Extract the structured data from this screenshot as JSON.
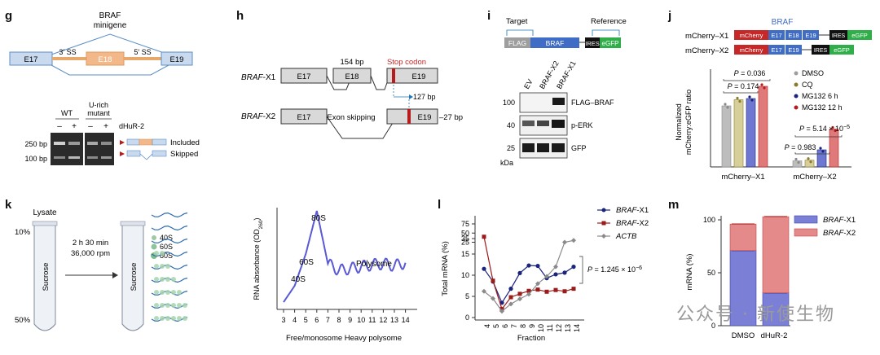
{
  "panels": {
    "g": {
      "letter": "g",
      "title": "BRAF\nminigene",
      "exons": [
        "E17",
        "E18",
        "E19"
      ],
      "ss3": "3′ SS",
      "ss5": "5′ SS",
      "wt": "WT",
      "mutant": "U-rich\nmutant",
      "minus": "–",
      "plus": "+",
      "treatment": "dHuR-2",
      "ladder": [
        "250 bp",
        "100 bp"
      ],
      "bands": [
        "Included",
        "Skipped"
      ]
    },
    "h": {
      "letter": "h",
      "x1": "BRAF-X1",
      "x2": "BRAF-X2",
      "exons": [
        "E17",
        "E18",
        "E19"
      ],
      "bp154": "154 bp",
      "stop": "Stop codon",
      "bp127": "127 bp",
      "skip": "Exon skipping",
      "bp27": "–27 bp"
    },
    "i": {
      "letter": "i",
      "target": "Target",
      "reference": "Reference",
      "construct": [
        "FLAG",
        "BRAF",
        "IRES",
        "eGFP"
      ],
      "lanes": [
        "EV",
        "BRAF-X2",
        "BRAF-X1"
      ],
      "blots": [
        {
          "mw": "100",
          "label": "FLAG–BRAF"
        },
        {
          "mw": "40",
          "label": "p-ERK"
        },
        {
          "mw": "25",
          "label": "GFP"
        }
      ],
      "kda": "kDa"
    },
    "j": {
      "letter": "j",
      "braf": "BRAF",
      "x1": "mCherry–X1",
      "x2": "mCherry–X2",
      "construct": [
        "mCherry",
        "E17",
        "E18",
        "E19",
        "IRES",
        "eGFP"
      ],
      "construct2": [
        "mCherry",
        "E17",
        "E19",
        "IRES",
        "eGFP"
      ],
      "ylabel": "Normalized\nmCherry:eGFP ratio",
      "legend": [
        "DMSO",
        "CQ",
        "MG132 6 h",
        "MG132 12 h"
      ],
      "legend_colors": [
        "#9e9e9e",
        "#8a7a2a",
        "#1a237e",
        "#b71c1c"
      ],
      "p1": "P = 0.036",
      "p2": "P = 0.174",
      "p3": "P = 5.14 × 10⁻⁵",
      "p4": "P = 0.983"
    },
    "k": {
      "letter": "k",
      "lysate": "Lysate",
      "pct": [
        "10%",
        "50%"
      ],
      "tube": "Sucrose",
      "spin": [
        "2 h 30 min",
        "36,000 rpm"
      ],
      "species": [
        "40S",
        "60S",
        "80S"
      ],
      "ylabel": "RNA absorbance (OD260)",
      "xlabel": "Free/monosome Heavy polysome",
      "peaks": [
        "40S",
        "60S",
        "80S",
        "Polysome"
      ]
    },
    "l": {
      "letter": "l",
      "ylabel": "Total mRNA (%)",
      "xlabel": "Fraction",
      "pval": "P = 1.245 × 10⁻⁶"
    },
    "m": {
      "letter": "m",
      "ylabel": "mRNA (%)",
      "categories": [
        "DMSO",
        "dHuR-2"
      ]
    }
  },
  "watermark": "公众号 · 新使生物",
  "chart_data": [
    {
      "type": "bar",
      "panel": "j",
      "categories": [
        "mCherry–X1",
        "mCherry–X2"
      ],
      "series": [
        {
          "name": "DMSO",
          "values": [
            1.0,
            0.1
          ]
        },
        {
          "name": "CQ",
          "values": [
            1.1,
            0.11
          ]
        },
        {
          "name": "MG132 6 h",
          "values": [
            1.12,
            0.28
          ]
        },
        {
          "name": "MG132 12 h",
          "values": [
            1.32,
            0.62
          ]
        }
      ],
      "ylim": [
        0,
        1.6
      ],
      "ylabel": "Normalized\nmCherry:eGFP ratio"
    },
    {
      "type": "line",
      "panel": "k",
      "x": [
        3,
        4,
        5,
        6,
        7,
        8,
        9,
        10,
        11,
        12,
        13,
        14
      ],
      "values": [
        0.05,
        0.22,
        0.55,
        1.0,
        0.45,
        0.38,
        0.4,
        0.42,
        0.44,
        0.45,
        0.43,
        0.46
      ],
      "xlabel": "Free/monosome Heavy polysome",
      "ylabel": "RNA absorbance (OD260)"
    },
    {
      "type": "line",
      "panel": "l",
      "x": [
        4,
        5,
        6,
        7,
        8,
        9,
        10,
        11,
        12,
        13,
        14
      ],
      "series": [
        {
          "name": "BRAF-X1",
          "values": [
            11.5,
            8.5,
            3.5,
            6.8,
            10.5,
            12.3,
            12.2,
            9.3,
            10.2,
            10.6,
            12.0
          ]
        },
        {
          "name": "BRAF-X2",
          "values": [
            40.0,
            8.7,
            2.0,
            4.8,
            5.6,
            6.3,
            6.6,
            6.1,
            6.5,
            6.2,
            6.8
          ]
        },
        {
          "name": "ACTB",
          "values": [
            6.2,
            4.5,
            1.5,
            3.2,
            4.4,
            5.5,
            8.0,
            9.7,
            12.0,
            25.0,
            30.0
          ]
        }
      ],
      "yticks": [
        "0",
        "5",
        "10",
        "15",
        "25",
        "35",
        "50",
        "75"
      ],
      "xlabel": "Fraction",
      "ylabel": "Total mRNA (%)",
      "pval": "P = 1.245 × 10⁻⁶"
    },
    {
      "type": "bar",
      "panel": "m",
      "stacked": true,
      "categories": [
        "DMSO",
        "dHuR-2"
      ],
      "series": [
        {
          "name": "BRAF-X1",
          "values": [
            71,
            31
          ]
        },
        {
          "name": "BRAF-X2",
          "values": [
            25,
            72
          ]
        }
      ],
      "ylim": [
        0,
        100
      ],
      "yticks": [
        0,
        50,
        100
      ],
      "ylabel": "mRNA (%)"
    }
  ]
}
